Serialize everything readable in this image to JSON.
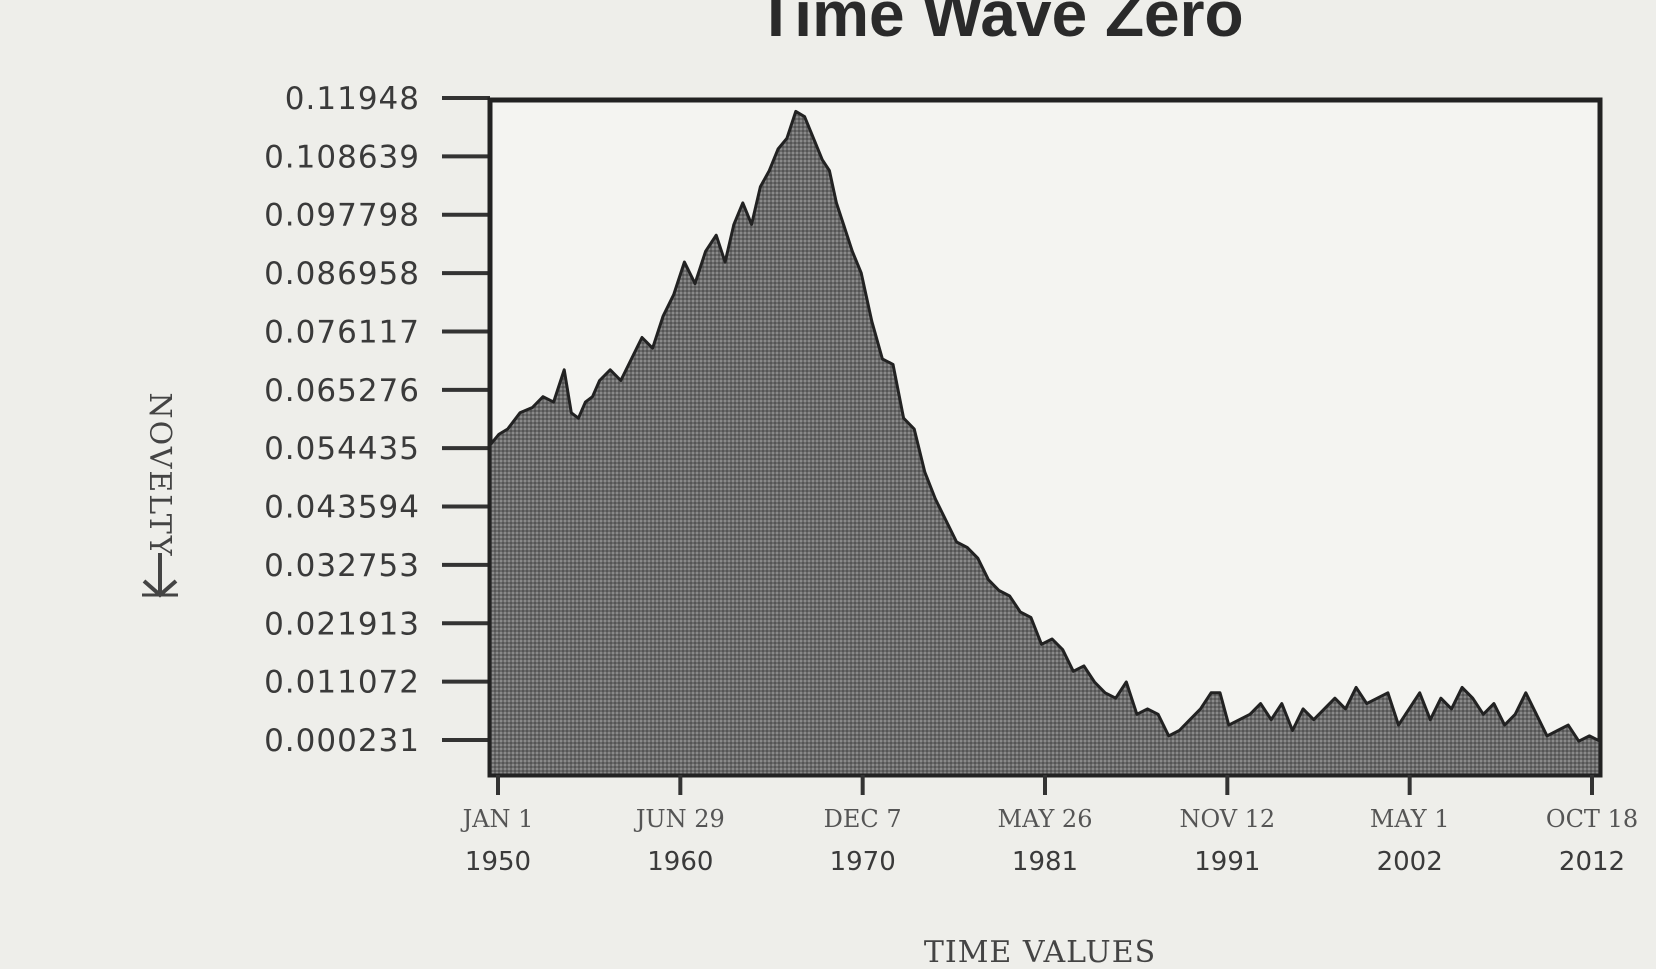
{
  "chart_data": {
    "type": "area",
    "title": "Time Wave Zero",
    "xlabel": "TIME VALUES",
    "ylabel": "NOVELTY",
    "ylabel_icon": "down-arrow-icon",
    "ylim": [
      0.000231,
      0.11948
    ],
    "y_ticks": [
      "0.11948",
      "0.108639",
      "0.097798",
      "0.086958",
      "0.076117",
      "0.065276",
      "0.054435",
      "0.043594",
      "0.032753",
      "0.021913",
      "0.011072",
      "0.000231"
    ],
    "x_ticks": [
      {
        "line1": "JAN 1",
        "line2": "1950"
      },
      {
        "line1": "JUN 29",
        "line2": "1960"
      },
      {
        "line1": "DEC 7",
        "line2": "1970"
      },
      {
        "line1": "MAY 26",
        "line2": "1981"
      },
      {
        "line1": "NOV 12",
        "line2": "1991"
      },
      {
        "line1": "MAY 1",
        "line2": "2002"
      },
      {
        "line1": "OCT 18",
        "line2": "2012"
      }
    ],
    "grid": false,
    "fill_color": "#6a6a6a",
    "x_start_year": 1950.0,
    "x_end_year": 2012.8,
    "series": [
      {
        "x": [
          1950.0,
          1950.5,
          1951.0,
          1951.7,
          1952.4,
          1953.0,
          1953.6,
          1954.2,
          1954.6,
          1955.0,
          1955.4,
          1955.8,
          1956.2,
          1956.8,
          1957.4,
          1958.0,
          1958.6,
          1959.2,
          1959.8,
          1960.4,
          1961.0,
          1961.6,
          1962.2,
          1962.8,
          1963.3,
          1963.8,
          1964.3,
          1964.8,
          1965.3,
          1965.8,
          1966.3,
          1966.8,
          1967.3,
          1967.8,
          1968.3,
          1968.8,
          1969.2,
          1969.6,
          1970.0,
          1970.5,
          1971.0,
          1971.6,
          1972.2,
          1972.8,
          1973.4,
          1974.0,
          1974.6,
          1975.2,
          1975.8,
          1976.4,
          1977.0,
          1977.6,
          1978.2,
          1978.8,
          1979.4,
          1980.0,
          1980.6,
          1981.2,
          1981.8,
          1982.4,
          1983.0,
          1983.6,
          1984.2,
          1984.8,
          1985.4,
          1986.0,
          1986.6,
          1987.2,
          1987.8,
          1988.4,
          1989.0,
          1989.6,
          1990.2,
          1990.8,
          1991.3,
          1991.8,
          1992.4,
          1993.0,
          1993.6,
          1994.2,
          1994.8,
          1995.4,
          1996.0,
          1996.6,
          1997.2,
          1997.8,
          1998.4,
          1999.0,
          1999.6,
          2000.2,
          2000.8,
          2001.4,
          2002.0,
          2002.6,
          2003.2,
          2003.8,
          2004.4,
          2005.0,
          2005.6,
          2006.2,
          2006.8,
          2007.4,
          2008.0,
          2008.6,
          2009.2,
          2009.8,
          2010.4,
          2011.0,
          2011.6,
          2012.2,
          2012.8
        ],
        "y": [
          0.055,
          0.057,
          0.058,
          0.061,
          0.062,
          0.064,
          0.063,
          0.069,
          0.061,
          0.06,
          0.063,
          0.064,
          0.067,
          0.069,
          0.067,
          0.071,
          0.075,
          0.073,
          0.079,
          0.083,
          0.089,
          0.085,
          0.091,
          0.094,
          0.089,
          0.096,
          0.1,
          0.096,
          0.103,
          0.106,
          0.11,
          0.112,
          0.117,
          0.116,
          0.112,
          0.108,
          0.106,
          0.1,
          0.096,
          0.091,
          0.087,
          0.078,
          0.071,
          0.07,
          0.06,
          0.058,
          0.05,
          0.045,
          0.041,
          0.037,
          0.036,
          0.034,
          0.03,
          0.028,
          0.027,
          0.024,
          0.023,
          0.018,
          0.019,
          0.017,
          0.013,
          0.014,
          0.011,
          0.009,
          0.008,
          0.011,
          0.005,
          0.006,
          0.005,
          0.001,
          0.002,
          0.004,
          0.006,
          0.009,
          0.009,
          0.003,
          0.004,
          0.005,
          0.007,
          0.004,
          0.007,
          0.002,
          0.006,
          0.004,
          0.006,
          0.008,
          0.006,
          0.01,
          0.007,
          0.008,
          0.009,
          0.003,
          0.006,
          0.009,
          0.004,
          0.008,
          0.006,
          0.01,
          0.008,
          0.005,
          0.007,
          0.003,
          0.005,
          0.009,
          0.005,
          0.001,
          0.002,
          0.003,
          0.0,
          0.001,
          0.0
        ]
      }
    ]
  }
}
